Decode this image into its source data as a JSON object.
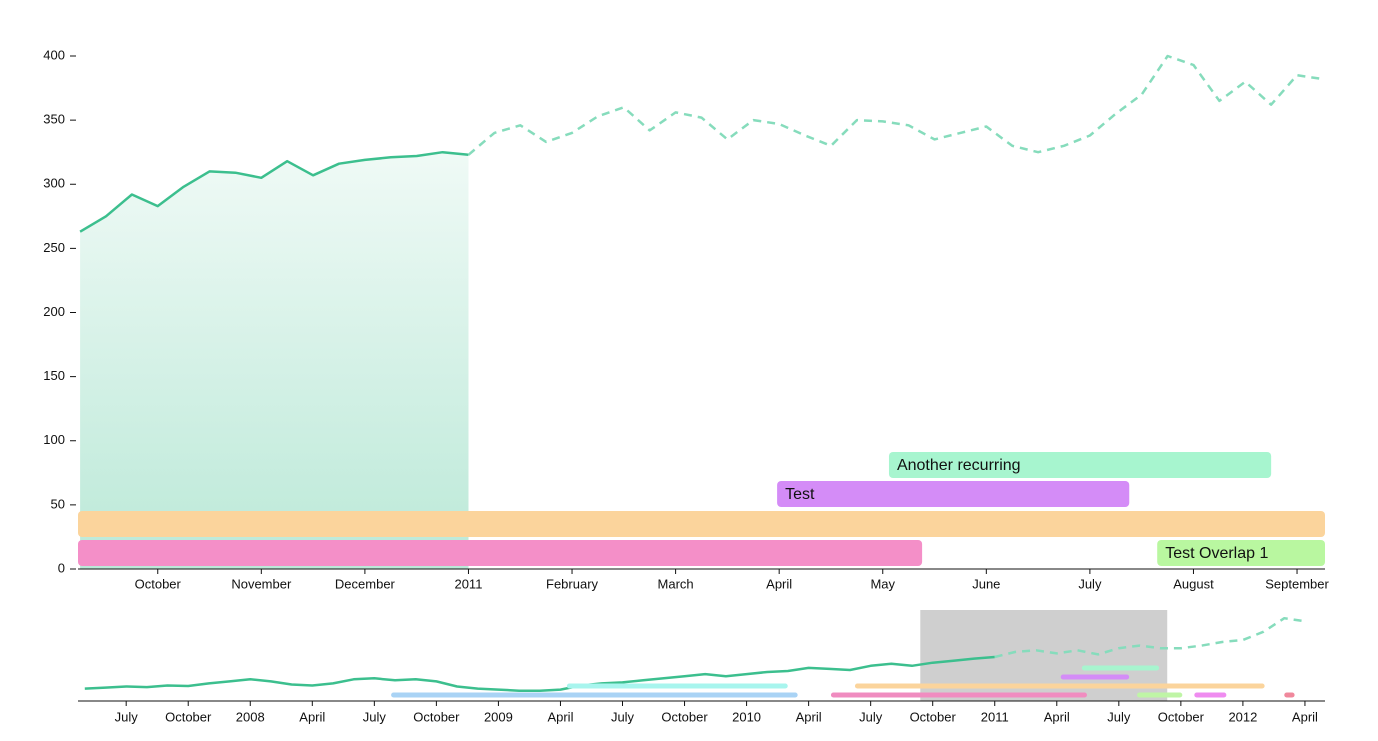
{
  "chart_data": [
    {
      "type": "line",
      "x": [
        9.25,
        9.5,
        9.75,
        10,
        10.25,
        10.5,
        10.75,
        11,
        11.25,
        11.5,
        11.75,
        12,
        12.25,
        12.5,
        12.75,
        13,
        13.25,
        13.5,
        13.75,
        14,
        14.25,
        14.5,
        14.75,
        15,
        15.25,
        15.5,
        15.75,
        16,
        16.25,
        16.5,
        16.75,
        17,
        17.25,
        17.5,
        17.75,
        18,
        18.25,
        18.5,
        18.75,
        19,
        19.25,
        19.5,
        19.75,
        20,
        20.25,
        20.5,
        20.75,
        21,
        21.25
      ],
      "xlim": [
        9.23,
        21.27
      ],
      "xticks": [
        {
          "value": 10,
          "label": "October"
        },
        {
          "value": 11,
          "label": "November"
        },
        {
          "value": 12,
          "label": "December"
        },
        {
          "value": 13,
          "label": "2011"
        },
        {
          "value": 14,
          "label": "February"
        },
        {
          "value": 15,
          "label": "March"
        },
        {
          "value": 16,
          "label": "April"
        },
        {
          "value": 17,
          "label": "May"
        },
        {
          "value": 18,
          "label": "June"
        },
        {
          "value": 19,
          "label": "July"
        },
        {
          "value": 20,
          "label": "August"
        },
        {
          "value": 21,
          "label": "September"
        }
      ],
      "ylim": [
        0,
        400
      ],
      "yticks": [
        0,
        50,
        100,
        150,
        200,
        250,
        300,
        350,
        400
      ],
      "series": [
        {
          "color": "#3cbf8e",
          "area": true,
          "dashed": false,
          "values": [
            263,
            275,
            292,
            283,
            298,
            310,
            309,
            305,
            318,
            307,
            316,
            319,
            321,
            322,
            325,
            323,
            null,
            null,
            null,
            null,
            null,
            null,
            null,
            null,
            null,
            null,
            null,
            null,
            null,
            null,
            null,
            null,
            null,
            null,
            null,
            null,
            null,
            null,
            null,
            null,
            null,
            null,
            null,
            null,
            null,
            null,
            null,
            null,
            null
          ]
        },
        {
          "color": "#86dcbc",
          "area": false,
          "dashed": true,
          "values": [
            null,
            null,
            null,
            null,
            null,
            null,
            null,
            null,
            null,
            null,
            null,
            null,
            null,
            null,
            null,
            323,
            340,
            346,
            333,
            340,
            353,
            360,
            342,
            356,
            352,
            335,
            350,
            347,
            338,
            330,
            350,
            349,
            346,
            335,
            340,
            345,
            330,
            325,
            330,
            338,
            355,
            370,
            400,
            393,
            365,
            380,
            362,
            385,
            382
          ]
        }
      ],
      "events": [
        [
          {
            "start": 9.23,
            "end": 17.38,
            "color": "#f48fc8"
          },
          {
            "start": 19.65,
            "end": 21.27,
            "color": "#b9f7a0",
            "label": "Test Overlap 1"
          }
        ],
        [
          {
            "start": 9.23,
            "end": 21.27,
            "color": "#fbd49c"
          }
        ],
        [
          {
            "start": 15.98,
            "end": 19.38,
            "color": "#d48cf7",
            "label": "Test"
          }
        ],
        [
          {
            "start": 17.06,
            "end": 20.75,
            "color": "#a7f5cf",
            "label": "Another recurring"
          }
        ]
      ]
    },
    {
      "type": "line",
      "x": [
        -31,
        -30,
        -29,
        -28,
        -27,
        -26,
        -25,
        -24,
        -23,
        -22,
        -21,
        -20,
        -19,
        -18,
        -17,
        -16,
        -15,
        -14,
        -13,
        -12,
        -11,
        -10,
        -9,
        -8,
        -7,
        -6,
        -5,
        -4,
        -3,
        -2,
        -1,
        0,
        1,
        2,
        3,
        4,
        5,
        6,
        7,
        8,
        9,
        10,
        11,
        12,
        13,
        14,
        15,
        16,
        17,
        18,
        19,
        20,
        21,
        22,
        23,
        24,
        25,
        26,
        27,
        28
      ],
      "xlim": [
        -31.33,
        28.97
      ],
      "xticks": [
        {
          "value": -29,
          "label": "July"
        },
        {
          "value": -26,
          "label": "October"
        },
        {
          "value": -23,
          "label": "2008"
        },
        {
          "value": -20,
          "label": "April"
        },
        {
          "value": -17,
          "label": "July"
        },
        {
          "value": -14,
          "label": "October"
        },
        {
          "value": -11,
          "label": "2009"
        },
        {
          "value": -8,
          "label": "April"
        },
        {
          "value": -5,
          "label": "July"
        },
        {
          "value": -2,
          "label": "October"
        },
        {
          "value": 1,
          "label": "2010"
        },
        {
          "value": 4,
          "label": "April"
        },
        {
          "value": 7,
          "label": "July"
        },
        {
          "value": 10,
          "label": "October"
        },
        {
          "value": 13,
          "label": "2011"
        },
        {
          "value": 16,
          "label": "April"
        },
        {
          "value": 19,
          "label": "July"
        },
        {
          "value": 22,
          "label": "October"
        },
        {
          "value": 25,
          "label": "2012"
        },
        {
          "value": 28,
          "label": "April"
        }
      ],
      "ylim": [
        240,
        410
      ],
      "brush": [
        9.4,
        21.34
      ],
      "series": [
        {
          "color": "#3cbf8e",
          "area": false,
          "dashed": false,
          "values": [
            262,
            264,
            266,
            265,
            268,
            267,
            272,
            276,
            280,
            276,
            270,
            268,
            272,
            280,
            282,
            278,
            280,
            276,
            266,
            262,
            260,
            258,
            258,
            260,
            268,
            272,
            274,
            278,
            282,
            286,
            290,
            286,
            290,
            294,
            296,
            302,
            300,
            298,
            306,
            310,
            306,
            312,
            316,
            320,
            323,
            null,
            null,
            null,
            null,
            null,
            null,
            null,
            null,
            null,
            null,
            null,
            null,
            null,
            null,
            null
          ]
        },
        {
          "color": "#86dcbc",
          "area": false,
          "dashed": true,
          "values": [
            null,
            null,
            null,
            null,
            null,
            null,
            null,
            null,
            null,
            null,
            null,
            null,
            null,
            null,
            null,
            null,
            null,
            null,
            null,
            null,
            null,
            null,
            null,
            null,
            null,
            null,
            null,
            null,
            null,
            null,
            null,
            null,
            null,
            null,
            null,
            null,
            null,
            null,
            null,
            null,
            null,
            null,
            null,
            null,
            323,
            333,
            336,
            330,
            336,
            328,
            340,
            345,
            340,
            340,
            345,
            352,
            356,
            372,
            398,
            392
          ]
        }
      ],
      "events": [
        [
          {
            "start": -16.19,
            "end": 3.47,
            "color": "#a9d3f5"
          },
          {
            "start": 5.08,
            "end": 17.46,
            "color": "#f08cc0"
          },
          {
            "start": 19.88,
            "end": 22.07,
            "color": "#bff5a6"
          },
          {
            "start": 22.65,
            "end": 24.2,
            "color": "#ef8cf0"
          },
          {
            "start": 27,
            "end": 27.5,
            "color": "#f0889c"
          }
        ],
        [
          {
            "start": -7.69,
            "end": 2.99,
            "color": "#a8f5ee"
          },
          {
            "start": 6.24,
            "end": 26.05,
            "color": "#fbd49c"
          }
        ],
        [
          {
            "start": 16.19,
            "end": 19.5,
            "color": "#d48cf7"
          }
        ],
        [
          {
            "start": 17.21,
            "end": 20.95,
            "color": "#a7f5cf"
          }
        ]
      ]
    }
  ]
}
